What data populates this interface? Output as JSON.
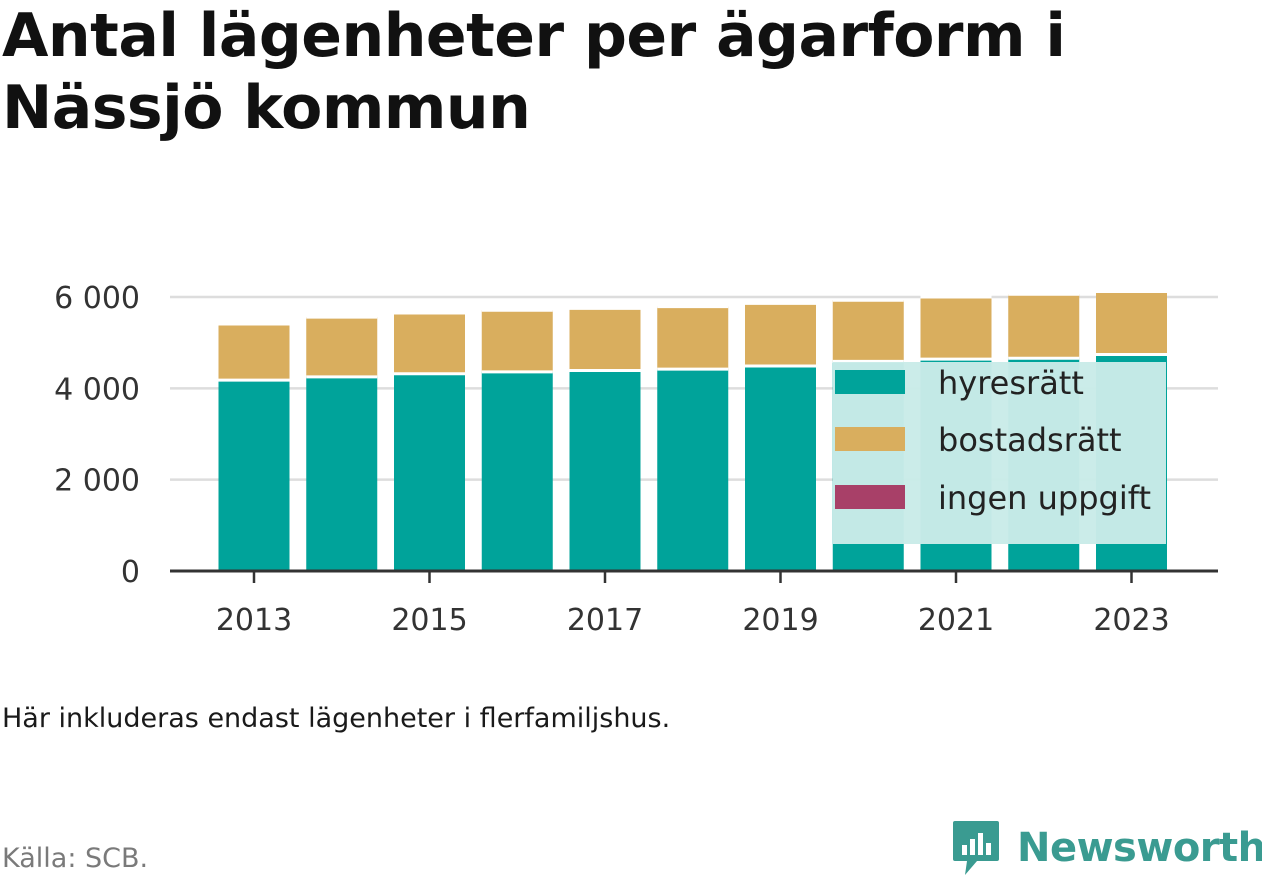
{
  "title": "Antal lägenheter per ägarform i Nässjö kommun",
  "note": "Här inkluderas endast lägenheter i flerfamiljshus.",
  "source": "Källa: SCB.",
  "brand": {
    "name": "Newsworthy",
    "logo_icon": "bar-chart-speech-bubble-icon",
    "color": "#3a9b91"
  },
  "colors": {
    "hyresratt": "#00a39a",
    "bostadsratt": "#d9ae5e",
    "ingen_uppgift": "#a84068",
    "grid": "#dddddd",
    "axis": "#333333",
    "legend_backdrop": "#c9ebe8"
  },
  "chart_data": {
    "type": "bar",
    "stacked": true,
    "title": "Antal lägenheter per ägarform i Nässjö kommun",
    "xlabel": "",
    "ylabel": "",
    "categories": [
      "2013",
      "2014",
      "2015",
      "2016",
      "2017",
      "2018",
      "2019",
      "2020",
      "2021",
      "2022",
      "2023"
    ],
    "x_tick_labels": [
      "2013",
      "2015",
      "2017",
      "2019",
      "2021",
      "2023"
    ],
    "y_ticks": [
      0,
      2000,
      4000,
      6000
    ],
    "y_tick_labels": [
      "0",
      "2 000",
      "4 000",
      "6 000"
    ],
    "ylim": [
      0,
      6000
    ],
    "grid": true,
    "legend_position": "inside-right",
    "series": [
      {
        "key": "hyresratt",
        "name": "hyresrätt",
        "values": [
          4180,
          4250,
          4320,
          4360,
          4390,
          4420,
          4490,
          4590,
          4640,
          4660,
          4740
        ]
      },
      {
        "key": "bostadsratt",
        "name": "bostadsrätt",
        "values": [
          1230,
          1310,
          1330,
          1350,
          1360,
          1370,
          1370,
          1340,
          1360,
          1400,
          1380
        ]
      },
      {
        "key": "ingen_uppgift",
        "name": "ingen uppgift",
        "values": [
          0,
          0,
          0,
          0,
          0,
          0,
          0,
          0,
          0,
          0,
          0
        ]
      }
    ]
  }
}
